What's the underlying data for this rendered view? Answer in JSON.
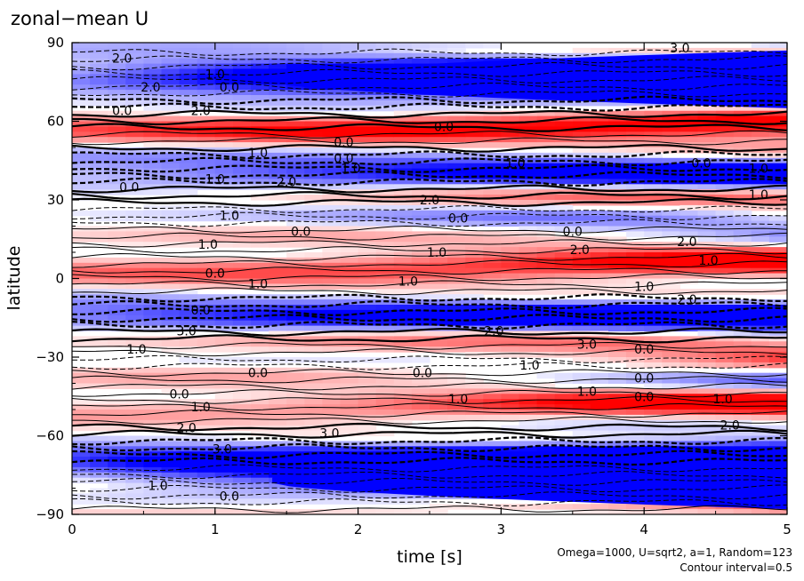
{
  "chart_data": {
    "type": "heatmap",
    "title": "zonal−mean U",
    "xlabel": "time [s]",
    "ylabel": "latitude",
    "xlim": [
      0,
      5
    ],
    "ylim": [
      -90,
      90
    ],
    "x_ticks": [
      0,
      1,
      2,
      3,
      4,
      5
    ],
    "x_tick_labels": [
      "0",
      "1",
      "2",
      "3",
      "4",
      "5"
    ],
    "y_ticks": [
      90,
      60,
      30,
      0,
      -30,
      -60,
      -90
    ],
    "y_tick_labels": [
      "90",
      "60",
      "30",
      "0",
      "−30",
      "−60",
      "−90"
    ],
    "grid": false,
    "colors": {
      "positive": "#ff0000",
      "negative": "#0000ff",
      "zero": "#ffffff",
      "lines": "#000000"
    },
    "contour_interval": 0.5,
    "contour_labels": [
      {
        "t": 0.55,
        "lat": 73,
        "text": "2.0"
      },
      {
        "t": 1.0,
        "lat": 78,
        "text": "1.0"
      },
      {
        "t": 1.1,
        "lat": 73,
        "text": "0.0"
      },
      {
        "t": 0.35,
        "lat": 64,
        "text": "0.0"
      },
      {
        "t": 0.9,
        "lat": 64,
        "text": "2.0"
      },
      {
        "t": 2.6,
        "lat": 58,
        "text": "0.0"
      },
      {
        "t": 1.3,
        "lat": 48,
        "text": "1.0"
      },
      {
        "t": 1.9,
        "lat": 52,
        "text": "0.0"
      },
      {
        "t": 1.9,
        "lat": 46,
        "text": "0.0"
      },
      {
        "t": 1.95,
        "lat": 42,
        "text": "1.0"
      },
      {
        "t": 3.1,
        "lat": 44,
        "text": "1.0"
      },
      {
        "t": 0.4,
        "lat": 35,
        "text": "0.0"
      },
      {
        "t": 1.0,
        "lat": 38,
        "text": "1.0"
      },
      {
        "t": 1.5,
        "lat": 37,
        "text": "2.0"
      },
      {
        "t": 2.5,
        "lat": 30,
        "text": "2.0"
      },
      {
        "t": 4.4,
        "lat": 44,
        "text": "0.0"
      },
      {
        "t": 4.8,
        "lat": 42,
        "text": "1.0"
      },
      {
        "t": 4.8,
        "lat": 32,
        "text": "1.0"
      },
      {
        "t": 1.1,
        "lat": 24,
        "text": "1.0"
      },
      {
        "t": 2.7,
        "lat": 23,
        "text": "0.0"
      },
      {
        "t": 3.5,
        "lat": 18,
        "text": "0.0"
      },
      {
        "t": 0.95,
        "lat": 13,
        "text": "1.0"
      },
      {
        "t": 1.6,
        "lat": 18,
        "text": "0.0"
      },
      {
        "t": 2.55,
        "lat": 10,
        "text": "1.0"
      },
      {
        "t": 3.55,
        "lat": 11,
        "text": "2.0"
      },
      {
        "t": 4.3,
        "lat": 14,
        "text": "2.0"
      },
      {
        "t": 4.45,
        "lat": 7,
        "text": "1.0"
      },
      {
        "t": 1.0,
        "lat": 2,
        "text": "0.0"
      },
      {
        "t": 1.3,
        "lat": -2,
        "text": "1.0"
      },
      {
        "t": 2.35,
        "lat": -1,
        "text": "1.0"
      },
      {
        "t": 4.0,
        "lat": -3,
        "text": "1.0"
      },
      {
        "t": 4.3,
        "lat": -8,
        "text": "2.0"
      },
      {
        "t": 0.9,
        "lat": -12,
        "text": "0.0"
      },
      {
        "t": 0.8,
        "lat": -20,
        "text": "3.0"
      },
      {
        "t": 0.45,
        "lat": -27,
        "text": "1.0"
      },
      {
        "t": 2.95,
        "lat": -20,
        "text": "2.0"
      },
      {
        "t": 3.6,
        "lat": -25,
        "text": "3.0"
      },
      {
        "t": 4.0,
        "lat": -27,
        "text": "0.0"
      },
      {
        "t": 3.2,
        "lat": -33,
        "text": "1.0"
      },
      {
        "t": 1.3,
        "lat": -36,
        "text": "0.0"
      },
      {
        "t": 2.45,
        "lat": -36,
        "text": "0.0"
      },
      {
        "t": 4.0,
        "lat": -38,
        "text": "0.0"
      },
      {
        "t": 0.75,
        "lat": -44,
        "text": "0.0"
      },
      {
        "t": 0.9,
        "lat": -49,
        "text": "1.0"
      },
      {
        "t": 2.7,
        "lat": -46,
        "text": "1.0"
      },
      {
        "t": 3.6,
        "lat": -43,
        "text": "1.0"
      },
      {
        "t": 4.0,
        "lat": -45,
        "text": "0.0"
      },
      {
        "t": 4.55,
        "lat": -46,
        "text": "1.0"
      },
      {
        "t": 0.8,
        "lat": -57,
        "text": "2.0"
      },
      {
        "t": 1.8,
        "lat": -59,
        "text": "3.0"
      },
      {
        "t": 4.6,
        "lat": -56,
        "text": "2.0"
      },
      {
        "t": 0.6,
        "lat": -79,
        "text": "1.0"
      },
      {
        "t": 1.1,
        "lat": -83,
        "text": "0.0"
      },
      {
        "t": 0.35,
        "lat": 84,
        "text": "2.0"
      },
      {
        "t": 4.25,
        "lat": 88,
        "text": "3.0"
      },
      {
        "t": 1.05,
        "lat": -65,
        "text": "3.0"
      }
    ]
  },
  "footnote": {
    "params": "Omega=1000, U=sqrt2, a=1, Random=123",
    "contour": "Contour interval=0.5"
  }
}
